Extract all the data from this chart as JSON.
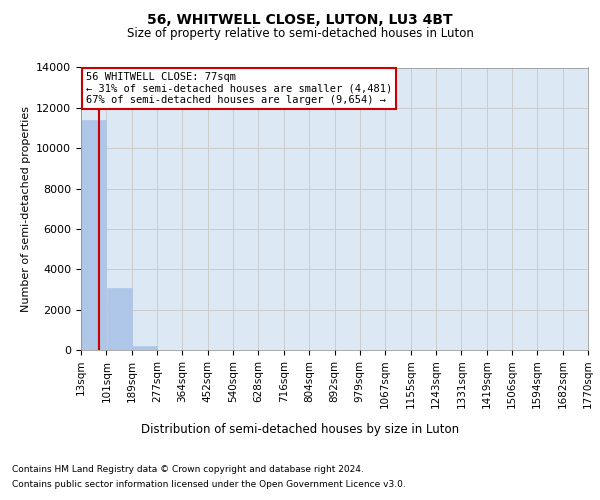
{
  "title": "56, WHITWELL CLOSE, LUTON, LU3 4BT",
  "subtitle": "Size of property relative to semi-detached houses in Luton",
  "xlabel": "Distribution of semi-detached houses by size in Luton",
  "ylabel": "Number of semi-detached properties",
  "property_size": 77,
  "property_label": "56 WHITWELL CLOSE: 77sqm",
  "pct_smaller": 31,
  "n_smaller": 4481,
  "pct_larger": 67,
  "n_larger": 9654,
  "bar_edges": [
    13,
    101,
    189,
    277,
    364,
    452,
    540,
    628,
    716,
    804,
    892,
    979,
    1067,
    1155,
    1243,
    1331,
    1419,
    1506,
    1594,
    1682,
    1770
  ],
  "bar_heights": [
    11400,
    3050,
    200,
    20,
    5,
    2,
    1,
    1,
    0,
    0,
    0,
    0,
    0,
    0,
    0,
    0,
    0,
    0,
    0,
    0
  ],
  "bar_color": "#aec6e8",
  "bar_edgecolor": "#aec6e8",
  "line_color": "#cc0000",
  "annotation_box_edgecolor": "#cc0000",
  "annotation_box_facecolor": "#ffffff",
  "grid_color": "#cccccc",
  "background_color": "#dce9f5",
  "ylim": [
    0,
    14000
  ],
  "yticks": [
    0,
    2000,
    4000,
    6000,
    8000,
    10000,
    12000,
    14000
  ],
  "tick_labels": [
    "13sqm",
    "101sqm",
    "189sqm",
    "277sqm",
    "364sqm",
    "452sqm",
    "540sqm",
    "628sqm",
    "716sqm",
    "804sqm",
    "892sqm",
    "979sqm",
    "1067sqm",
    "1155sqm",
    "1243sqm",
    "1331sqm",
    "1419sqm",
    "1506sqm",
    "1594sqm",
    "1682sqm",
    "1770sqm"
  ],
  "footer_line1": "Contains HM Land Registry data © Crown copyright and database right 2024.",
  "footer_line2": "Contains public sector information licensed under the Open Government Licence v3.0."
}
